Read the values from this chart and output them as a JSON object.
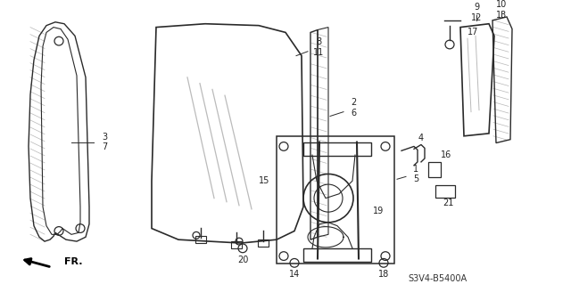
{
  "bg_color": "#ffffff",
  "line_color": "#2a2a2a",
  "gray": "#888888",
  "lgray": "#bbbbbb",
  "catalog_code": "S3V4-B5400A",
  "fig_w": 6.4,
  "fig_h": 3.19,
  "dpi": 100
}
